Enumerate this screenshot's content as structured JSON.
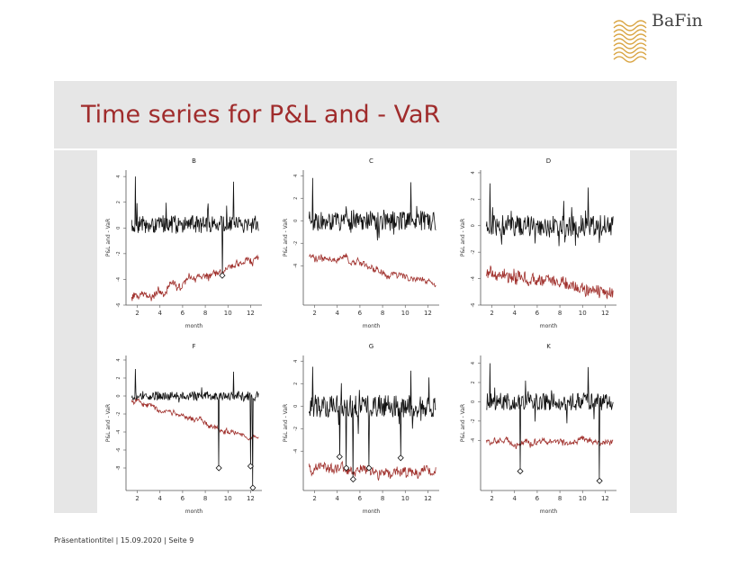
{
  "slide": {
    "title": "Time series for P&L and - VaR",
    "footer": "Präsentationtitel | 15.09.2020 | Seite 9"
  },
  "logo": {
    "text": "BaFin",
    "icon": "bafin-wave-logo",
    "color": "#d9a441"
  },
  "colors": {
    "pnl": "#111111",
    "var": "#a0302c",
    "accent": "#a02c2c",
    "band": "#e6e6e6"
  },
  "chart_data": [
    {
      "type": "line",
      "title": "B",
      "xlabel": "month",
      "ylabel": "P&L and - VaR",
      "xlim": [
        1,
        13
      ],
      "ylim": [
        -6,
        4.5
      ],
      "xticks": [
        2,
        4,
        6,
        8,
        10,
        12
      ],
      "yticks": [
        4,
        2,
        0,
        -2,
        -4,
        -6
      ],
      "series": [
        {
          "name": "P&L",
          "pnl_level": 0.3,
          "amp": 0.7,
          "spike": 4.0
        },
        {
          "name": "-VaR",
          "start": -5.5,
          "end": -2.5,
          "noise": 0.5
        }
      ],
      "exceedances": [
        [
          9.5,
          -3.7
        ]
      ]
    },
    {
      "type": "line",
      "title": "C",
      "xlabel": "month",
      "ylabel": "P&L and - VaR",
      "xlim": [
        1,
        13
      ],
      "ylim": [
        -7.5,
        4.5
      ],
      "xticks": [
        2,
        4,
        6,
        8,
        10,
        12
      ],
      "yticks": [
        4,
        2,
        0,
        -2,
        -4
      ],
      "series": [
        {
          "name": "P&L",
          "pnl_level": 0.0,
          "amp": 0.9,
          "spike": 3.8
        },
        {
          "name": "-VaR",
          "start": -3.0,
          "end": -5.5,
          "noise": 0.4
        }
      ],
      "exceedances": []
    },
    {
      "type": "line",
      "title": "D",
      "xlabel": "month",
      "ylabel": "P&L and - VaR",
      "xlim": [
        1,
        13
      ],
      "ylim": [
        -6,
        4.2
      ],
      "xticks": [
        2,
        4,
        6,
        8,
        10,
        12
      ],
      "yticks": [
        4,
        2,
        0,
        -2,
        -4,
        -6
      ],
      "series": [
        {
          "name": "P&L",
          "pnl_level": 0.0,
          "amp": 0.8,
          "spike": 3.2
        },
        {
          "name": "-VaR",
          "start": -3.5,
          "end": -5.0,
          "noise": 0.9
        }
      ],
      "exceedances": []
    },
    {
      "type": "line",
      "title": "F",
      "xlabel": "month",
      "ylabel": "P&L and - VaR",
      "xlim": [
        1,
        13
      ],
      "ylim": [
        -10.5,
        4.5
      ],
      "xticks": [
        2,
        4,
        6,
        8,
        10,
        12
      ],
      "yticks": [
        4,
        2,
        0,
        -2,
        -4,
        -6,
        -8
      ],
      "series": [
        {
          "name": "P&L",
          "pnl_level": 0.0,
          "amp": 0.5,
          "spike": 3.0
        },
        {
          "name": "-VaR",
          "start": -0.5,
          "end": -5.0,
          "noise": 0.4
        }
      ],
      "exceedances": [
        [
          9.2,
          -8.0
        ],
        [
          12.0,
          -7.8
        ],
        [
          12.2,
          -10.2
        ]
      ]
    },
    {
      "type": "line",
      "title": "G",
      "xlabel": "month",
      "ylabel": "P&L and - VaR",
      "xlim": [
        1,
        13
      ],
      "ylim": [
        -7.5,
        4.5
      ],
      "xticks": [
        2,
        4,
        6,
        8,
        10,
        12
      ],
      "yticks": [
        4,
        2,
        0,
        -2,
        -4
      ],
      "series": [
        {
          "name": "P&L",
          "pnl_level": 0.0,
          "amp": 1.0,
          "spike": 3.5
        },
        {
          "name": "-VaR",
          "start": -5.5,
          "end": -6.0,
          "noise": 0.8
        }
      ],
      "exceedances": [
        [
          4.2,
          -4.5
        ],
        [
          4.8,
          -5.5
        ],
        [
          5.4,
          -6.5
        ],
        [
          6.8,
          -5.5
        ],
        [
          9.6,
          -4.6
        ]
      ]
    },
    {
      "type": "line",
      "title": "K",
      "xlabel": "month",
      "ylabel": "P&L and - VaR",
      "xlim": [
        1,
        13
      ],
      "ylim": [
        -9.2,
        4.8
      ],
      "xticks": [
        2,
        4,
        6,
        8,
        10,
        12
      ],
      "yticks": [
        4,
        2,
        0,
        -2,
        -4
      ],
      "series": [
        {
          "name": "P&L",
          "pnl_level": 0.0,
          "amp": 0.9,
          "spike": 4.0
        },
        {
          "name": "-VaR",
          "start": -4.2,
          "end": -4.2,
          "noise": 0.5
        }
      ],
      "exceedances": [
        [
          4.5,
          -7.2
        ],
        [
          11.5,
          -8.2
        ]
      ]
    }
  ]
}
